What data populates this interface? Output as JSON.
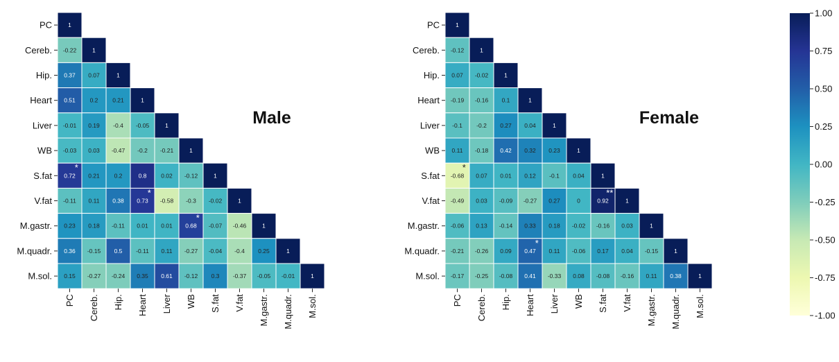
{
  "chart_data": [
    {
      "type": "heatmap",
      "title": "Male",
      "labels": [
        "PC",
        "Cereb.",
        "Hip.",
        "Heart",
        "Liver",
        "WB",
        "S.fat",
        "V.fat",
        "M.gastr.",
        "M.quadr.",
        "M.sol."
      ],
      "matrix": [
        [
          1
        ],
        [
          -0.22,
          1
        ],
        [
          0.37,
          0.07,
          1
        ],
        [
          0.51,
          0.2,
          0.21,
          1
        ],
        [
          -0.01,
          0.19,
          -0.4,
          -0.05,
          1
        ],
        [
          -0.03,
          0.03,
          -0.47,
          -0.2,
          -0.21,
          1
        ],
        [
          0.72,
          0.21,
          0.2,
          0.8,
          0.02,
          -0.12,
          1
        ],
        [
          -0.11,
          0.11,
          0.38,
          0.73,
          -0.58,
          -0.3,
          -0.02,
          1
        ],
        [
          0.23,
          0.18,
          -0.11,
          0.01,
          0.01,
          0.68,
          -0.07,
          -0.46,
          1
        ],
        [
          0.36,
          -0.15,
          0.5,
          -0.11,
          0.11,
          -0.27,
          -0.04,
          -0.4,
          0.25,
          1
        ],
        [
          0.15,
          -0.27,
          -0.24,
          0.35,
          0.61,
          -0.12,
          0.3,
          -0.37,
          -0.05,
          -0.01,
          1
        ]
      ],
      "significance": [
        {
          "row": 6,
          "col": 0,
          "mark": "*"
        },
        {
          "row": 7,
          "col": 3,
          "mark": "*"
        },
        {
          "row": 8,
          "col": 5,
          "mark": "*"
        }
      ]
    },
    {
      "type": "heatmap",
      "title": "Female",
      "labels": [
        "PC",
        "Cereb.",
        "Hip.",
        "Heart",
        "Liver",
        "WB",
        "S.fat",
        "V.fat",
        "M.gastr.",
        "M.quadr.",
        "M.sol."
      ],
      "matrix": [
        [
          1
        ],
        [
          -0.12,
          1
        ],
        [
          0.07,
          -0.02,
          1
        ],
        [
          -0.19,
          -0.16,
          0.1,
          1
        ],
        [
          -0.1,
          -0.2,
          0.27,
          0.04,
          1
        ],
        [
          0.11,
          -0.18,
          0.42,
          0.32,
          0.23,
          1
        ],
        [
          -0.68,
          0.07,
          0.01,
          0.12,
          -0.1,
          0.04,
          1
        ],
        [
          -0.49,
          0.03,
          -0.09,
          -0.27,
          0.27,
          0,
          0.92,
          1
        ],
        [
          -0.06,
          0.13,
          -0.14,
          0.33,
          0.18,
          -0.02,
          -0.16,
          0.03,
          1
        ],
        [
          -0.21,
          -0.26,
          0.09,
          0.47,
          0.11,
          -0.06,
          0.17,
          0.04,
          -0.15,
          1
        ],
        [
          -0.17,
          -0.25,
          -0.08,
          0.41,
          -0.33,
          0.08,
          -0.08,
          -0.16,
          0.11,
          0.38,
          1
        ]
      ],
      "significance": [
        {
          "row": 6,
          "col": 0,
          "mark": "*"
        },
        {
          "row": 7,
          "col": 6,
          "mark": "**"
        },
        {
          "row": 9,
          "col": 3,
          "mark": "*"
        }
      ]
    }
  ],
  "colorbar": {
    "min": -1.0,
    "max": 1.0,
    "ticks": [
      "1.00",
      "0.75",
      "0.50",
      "0.25",
      "0.00",
      "-0.25",
      "-0.50",
      "-0.75",
      "-1.00"
    ],
    "colormap": "YlGnBu",
    "stops": [
      "#ffffd9",
      "#edf8b1",
      "#c7e9b4",
      "#7fcdbb",
      "#41b6c4",
      "#1d91c0",
      "#225ea8",
      "#253494",
      "#081d58"
    ]
  }
}
